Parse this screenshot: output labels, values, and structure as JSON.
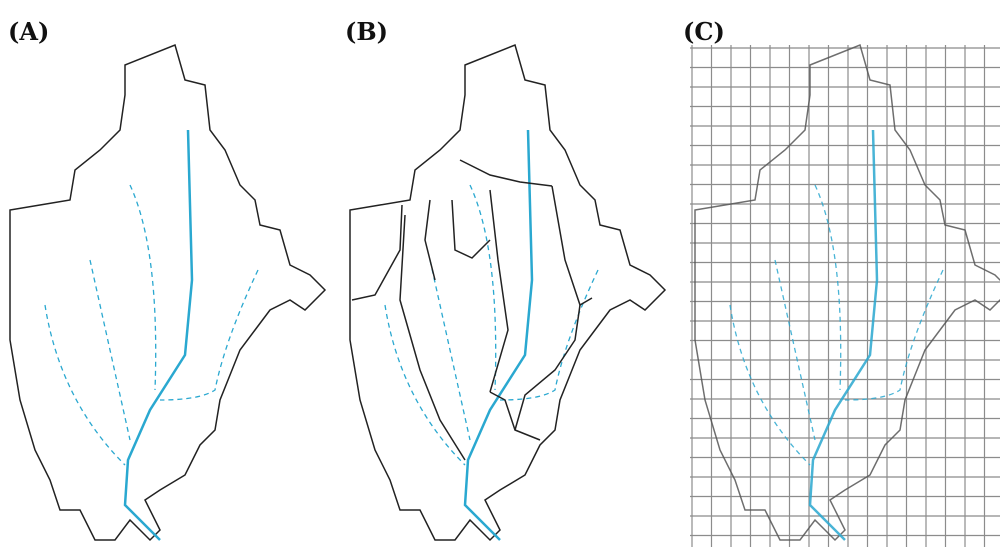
{
  "panels": [
    {
      "label": "(A)"
    },
    {
      "label": "(B)"
    },
    {
      "label": "(C)"
    }
  ]
}
